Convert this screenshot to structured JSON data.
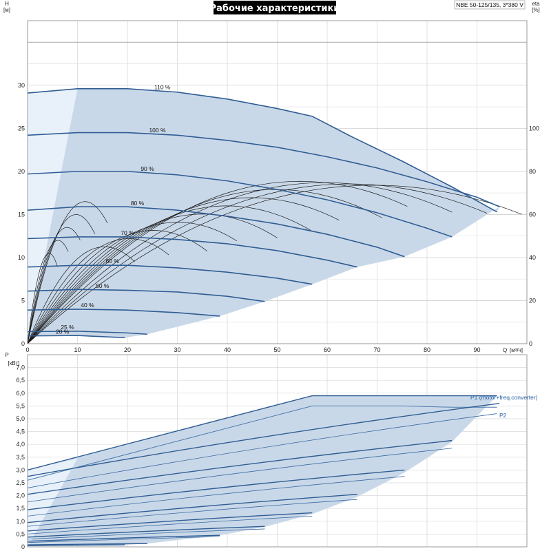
{
  "title": "Рабочие характеристики",
  "model": "NBE 50-125/135, 3*380 V",
  "chart_data": [
    {
      "type": "line",
      "name": "head",
      "ylabel": "H",
      "yunit": "[м]",
      "y2label": "eta",
      "y2unit": "[%]",
      "xlabel": "Q",
      "xunit": "[м³/ч]",
      "xlim": [
        0,
        100
      ],
      "ylim": [
        0,
        37.5
      ],
      "y2lim": [
        0,
        150
      ],
      "xticks": [
        0,
        10,
        20,
        30,
        40,
        50,
        60,
        70,
        80,
        90
      ],
      "yticks": [
        0,
        5,
        10,
        15,
        20,
        25,
        30
      ],
      "y2ticks": [
        0,
        20,
        40,
        60,
        80,
        100
      ],
      "grid": true,
      "envelope_color": "#c9d8e8",
      "curve_color": "#2f5d94",
      "speed_curves": [
        {
          "label": "110 %",
          "h0": 29.1,
          "x": [
            0,
            10,
            20,
            30,
            40,
            50,
            57,
            65,
            75,
            85,
            94
          ],
          "y": [
            29.1,
            29.6,
            29.6,
            29.2,
            28.4,
            27.3,
            26.4,
            24.0,
            21.2,
            18.2,
            15.3
          ]
        },
        {
          "label": "100 %",
          "h0": 24.2,
          "x": [
            0,
            10,
            20,
            30,
            40,
            50,
            60,
            70,
            80,
            90,
            94.5
          ],
          "y": [
            24.2,
            24.5,
            24.5,
            24.2,
            23.6,
            22.8,
            21.7,
            20.4,
            18.8,
            17.0,
            15.9
          ]
        },
        {
          "label": "90 %",
          "h0": 19.7,
          "x": [
            0,
            10,
            20,
            30,
            40,
            50,
            60,
            70,
            80,
            85
          ],
          "y": [
            19.7,
            20.0,
            20.0,
            19.6,
            18.9,
            17.9,
            16.7,
            15.2,
            13.4,
            12.4
          ]
        },
        {
          "label": "80 %",
          "h0": 15.5,
          "x": [
            0,
            10,
            20,
            30,
            40,
            50,
            60,
            70,
            75.5
          ],
          "y": [
            15.5,
            15.9,
            15.9,
            15.5,
            14.8,
            13.9,
            12.7,
            11.2,
            10.1
          ]
        },
        {
          "label": "70 %",
          "h0": 12.2,
          "x": [
            0,
            10,
            20,
            30,
            40,
            50,
            60,
            66
          ],
          "y": [
            12.2,
            12.4,
            12.4,
            12.1,
            11.6,
            10.8,
            9.7,
            8.9
          ]
        },
        {
          "label": "60 %",
          "h0": 8.9,
          "x": [
            0,
            10,
            20,
            30,
            40,
            50,
            57
          ],
          "y": [
            8.9,
            9.1,
            9.1,
            8.8,
            8.3,
            7.6,
            6.9
          ]
        },
        {
          "label": "50 %",
          "h0": 6.1,
          "x": [
            0,
            10,
            20,
            30,
            40,
            47.5
          ],
          "y": [
            6.1,
            6.3,
            6.2,
            6.0,
            5.5,
            4.9
          ]
        },
        {
          "label": "40 %",
          "h0": 3.9,
          "x": [
            0,
            10,
            20,
            30,
            38.5
          ],
          "y": [
            3.9,
            4.0,
            3.9,
            3.6,
            3.2
          ]
        },
        {
          "label": "25 %",
          "h0": 1.4,
          "x": [
            0,
            10,
            20,
            24
          ],
          "y": [
            1.4,
            1.45,
            1.25,
            1.1
          ]
        },
        {
          "label": "20 %",
          "h0": 0.9,
          "x": [
            0,
            10,
            19.5
          ],
          "y": [
            0.9,
            0.95,
            0.7
          ]
        }
      ],
      "label_positions_q": [
        27,
        26,
        24,
        22,
        20,
        17,
        15,
        12,
        8,
        7
      ]
    },
    {
      "type": "line",
      "name": "power",
      "ylabel": "P",
      "yunit": "[кВт]",
      "xlim": [
        0,
        100
      ],
      "ylim": [
        0,
        7.5
      ],
      "yticks": [
        0,
        0.5,
        1.0,
        1.5,
        2.0,
        2.5,
        3.0,
        3.5,
        4.0,
        4.5,
        5.0,
        5.5,
        6.0,
        6.5,
        7.0
      ],
      "ytick_labels": [
        "0",
        "0,5",
        "1,0",
        "1,5",
        "2,0",
        "2,5",
        "3,0",
        "3,5",
        "4,0",
        "4,5",
        "5,0",
        "5,5",
        "6,0",
        "6,5",
        "7,0"
      ],
      "series": [
        {
          "name": "P1 (motor+freq.converter)",
          "x": [
            0,
            57,
            65,
            75,
            85,
            94
          ],
          "y": [
            3.0,
            5.9,
            5.9,
            5.9,
            5.9,
            5.9
          ]
        },
        {
          "name": "P2",
          "x": [
            0,
            57,
            65,
            75,
            85,
            94
          ],
          "y": [
            2.6,
            5.5,
            5.5,
            5.5,
            5.45,
            5.45
          ]
        }
      ],
      "speed_curves_p1": [
        {
          "x": [
            0,
            94.5
          ],
          "y": [
            2.75,
            5.6
          ]
        },
        {
          "x": [
            0,
            85
          ],
          "y": [
            2.05,
            4.15
          ]
        },
        {
          "x": [
            0,
            75.5
          ],
          "y": [
            1.45,
            3.0
          ]
        },
        {
          "x": [
            0,
            66
          ],
          "y": [
            0.95,
            2.05
          ]
        },
        {
          "x": [
            0,
            57
          ],
          "y": [
            0.62,
            1.33
          ]
        },
        {
          "x": [
            0,
            47.5
          ],
          "y": [
            0.38,
            0.8
          ]
        },
        {
          "x": [
            0,
            38.5
          ],
          "y": [
            0.22,
            0.45
          ]
        },
        {
          "x": [
            0,
            24
          ],
          "y": [
            0.08,
            0.13
          ]
        },
        {
          "x": [
            0,
            19.5
          ],
          "y": [
            0.05,
            0.08
          ]
        }
      ],
      "speed_curves_p2": [
        {
          "x": [
            0,
            94
          ],
          "y": [
            2.3,
            5.2
          ]
        },
        {
          "x": [
            0,
            85
          ],
          "y": [
            1.75,
            3.85
          ]
        },
        {
          "x": [
            0,
            75.5
          ],
          "y": [
            1.2,
            2.75
          ]
        },
        {
          "x": [
            0,
            66
          ],
          "y": [
            0.8,
            1.85
          ]
        },
        {
          "x": [
            0,
            57
          ],
          "y": [
            0.5,
            1.2
          ]
        },
        {
          "x": [
            0,
            47.5
          ],
          "y": [
            0.3,
            0.7
          ]
        },
        {
          "x": [
            0,
            38.5
          ],
          "y": [
            0.17,
            0.4
          ]
        }
      ]
    }
  ]
}
